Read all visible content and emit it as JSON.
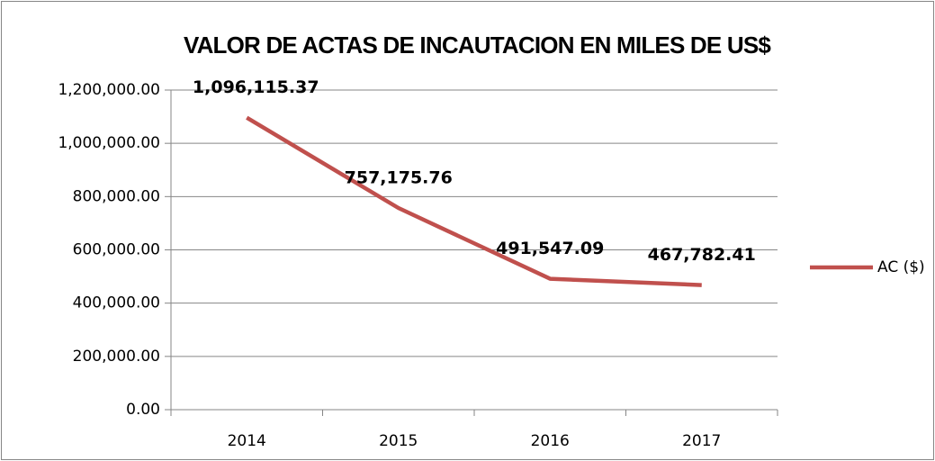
{
  "chart_data": {
    "type": "line",
    "title": "VALOR DE ACTAS DE INCAUTACION EN MILES DE US$",
    "categories": [
      "2014",
      "2015",
      "2016",
      "2017"
    ],
    "series": [
      {
        "name": "AC ($)",
        "color": "#c0504d",
        "values": [
          1096115.37,
          757175.76,
          491547.09,
          467782.41
        ],
        "value_labels": [
          "1,096,115.37",
          "757,175.76",
          "491,547.09",
          "467,782.41"
        ]
      }
    ],
    "ylim": [
      0,
      1200000
    ],
    "yticks": [
      {
        "value": 0,
        "label": "0.00"
      },
      {
        "value": 200000,
        "label": "200,000.00"
      },
      {
        "value": 400000,
        "label": "400,000.00"
      },
      {
        "value": 600000,
        "label": "600,000.00"
      },
      {
        "value": 800000,
        "label": "800,000.00"
      },
      {
        "value": 1000000,
        "label": "1,000,000.00"
      },
      {
        "value": 1200000,
        "label": "1,200,000.00"
      }
    ],
    "grid": true,
    "legend": "right"
  }
}
